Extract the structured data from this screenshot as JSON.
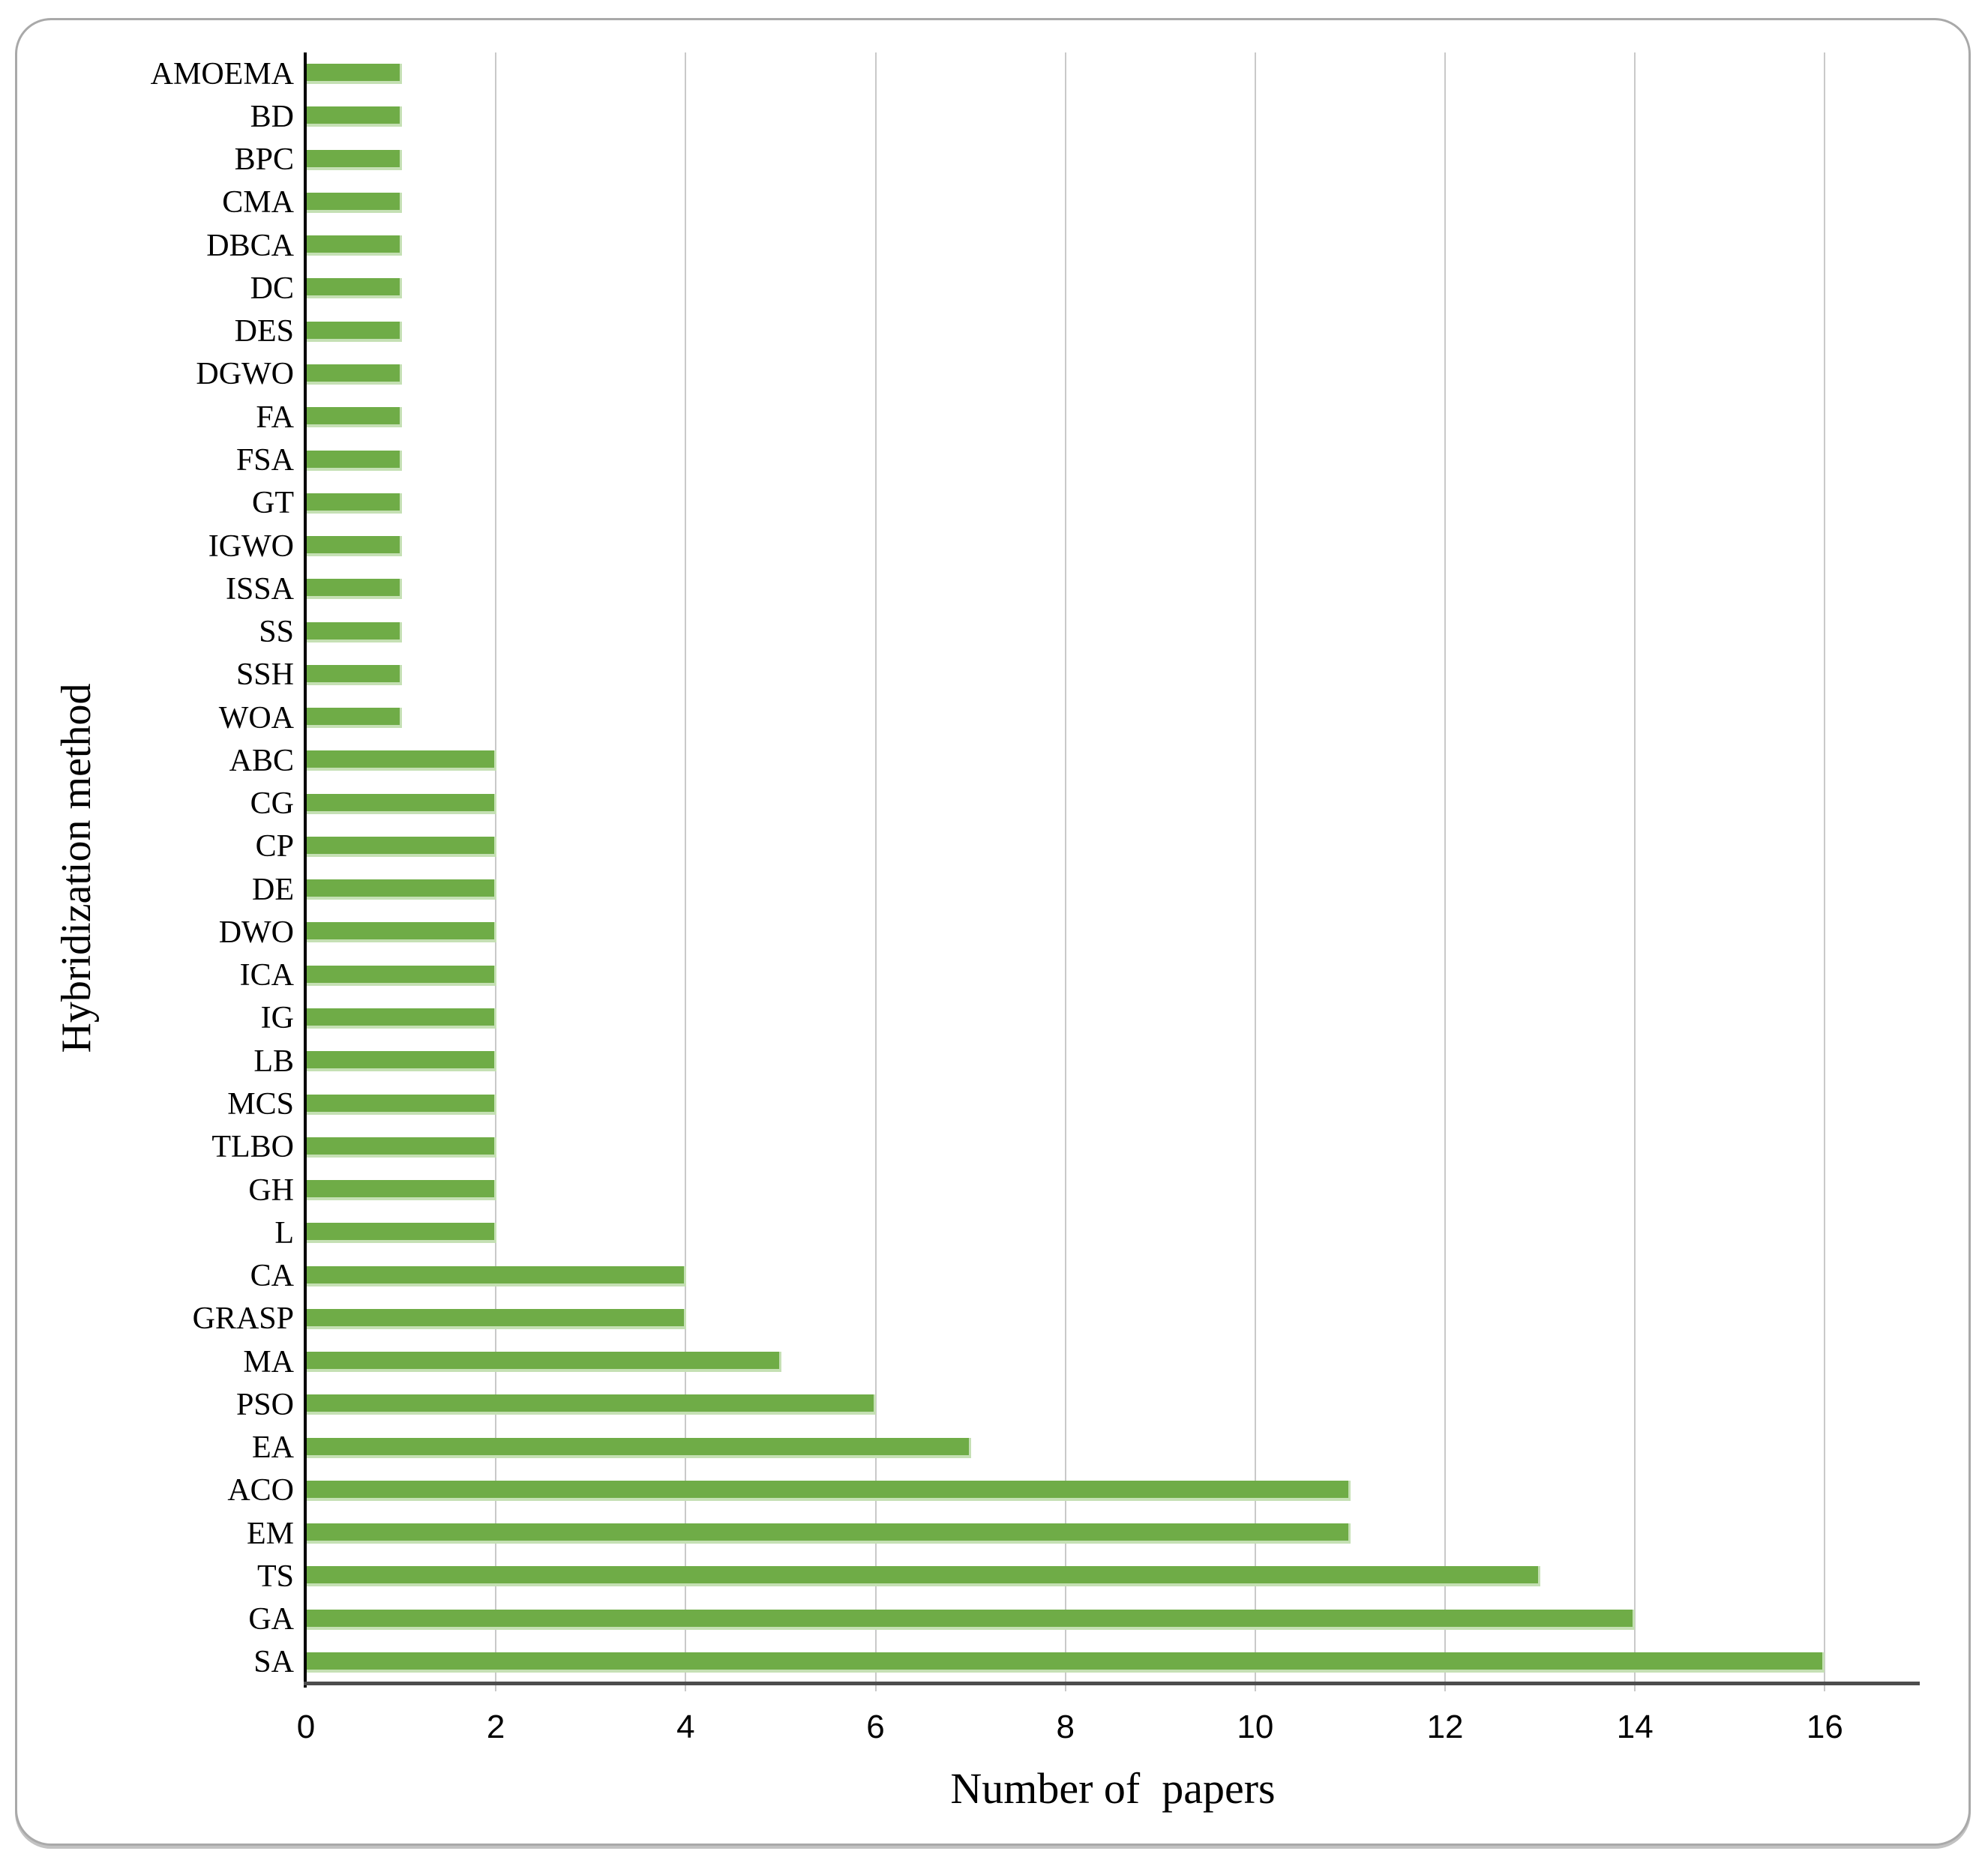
{
  "chart_data": {
    "type": "bar",
    "orientation": "horizontal",
    "title": "",
    "xlabel": "Number of  papers",
    "ylabel": "Hybridization method",
    "xlim": [
      0,
      17
    ],
    "xticks": [
      "0",
      "2",
      "4",
      "6",
      "8",
      "10",
      "12",
      "14",
      "16"
    ],
    "xtick_values": [
      0,
      2,
      4,
      6,
      8,
      10,
      12,
      14,
      16
    ],
    "gridline_values": [
      2,
      4,
      6,
      8,
      10,
      12,
      14,
      16
    ],
    "grid": "vertical-on",
    "legend": "none",
    "categories": [
      "AMOEMA",
      "BD",
      "BPC",
      "CMA",
      "DBCA",
      "DC",
      "DES",
      "DGWO",
      "FA",
      "FSA",
      "GT",
      "IGWO",
      "ISSA",
      "SS",
      "SSH",
      "WOA",
      "ABC",
      "CG",
      "CP",
      "DE",
      "DWO",
      "ICA",
      "IG",
      "LB",
      "MCS",
      "TLBO",
      "GH",
      "L",
      "CA",
      "GRASP",
      "MA",
      "PSO",
      "EA",
      "ACO",
      "EM",
      "TS",
      "GA",
      "SA"
    ],
    "values": [
      1,
      1,
      1,
      1,
      1,
      1,
      1,
      1,
      1,
      1,
      1,
      1,
      1,
      1,
      1,
      1,
      2,
      2,
      2,
      2,
      2,
      2,
      2,
      2,
      2,
      2,
      2,
      2,
      4,
      4,
      5,
      6,
      7,
      11,
      11,
      13,
      14,
      16
    ],
    "colors": {
      "bar": "#6fac47",
      "bar_edge": "#c5e0b4",
      "gridline": "#c9c9c9",
      "x_axis_line": "#4d4d4d",
      "y_axis_line": "#000000",
      "card_border": "#a9a9a9",
      "text": "#000000",
      "background": "#ffffff"
    }
  }
}
